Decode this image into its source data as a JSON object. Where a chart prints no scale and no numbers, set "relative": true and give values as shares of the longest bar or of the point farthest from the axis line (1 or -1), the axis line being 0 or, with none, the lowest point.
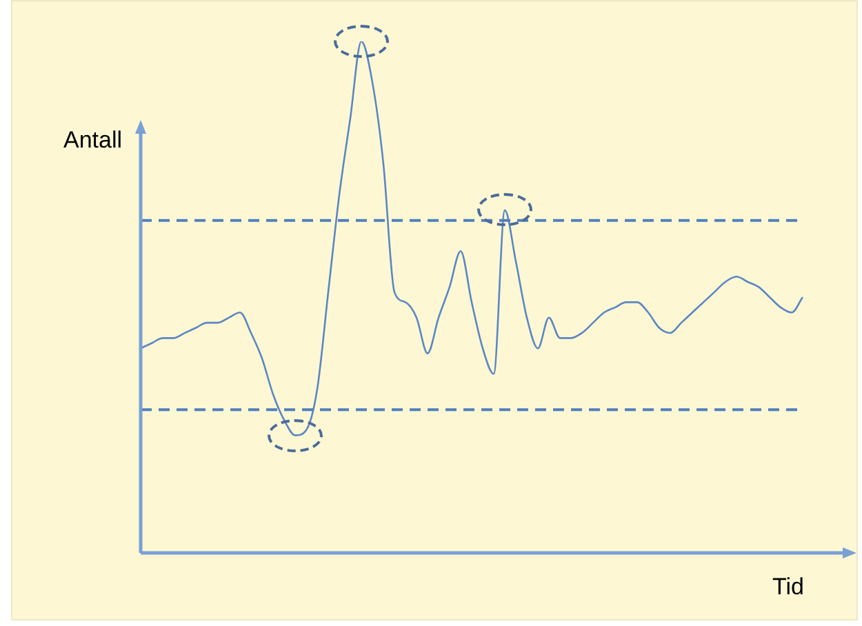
{
  "chart_data": {
    "type": "line",
    "relative": true,
    "xlabel": "Tid",
    "ylabel": "Antall",
    "categories": [
      null,
      null,
      null,
      null,
      null,
      null,
      null,
      null,
      null,
      null,
      null,
      null,
      null,
      null,
      null,
      null,
      null,
      null,
      null,
      null,
      null,
      null,
      null,
      null,
      null,
      null,
      null,
      null,
      null,
      null,
      null,
      null,
      null,
      null,
      null,
      null,
      null,
      null,
      null,
      null,
      null,
      null,
      null,
      null,
      null,
      null,
      null,
      null,
      null,
      null,
      null,
      null,
      null,
      null,
      null,
      null,
      null,
      null,
      null,
      null,
      null
    ],
    "series": [
      {
        "color": "#5b86c5",
        "values": [
          0.4,
          0.41,
          0.42,
          0.42,
          0.43,
          0.44,
          0.45,
          0.45,
          0.46,
          0.47,
          0.43,
          0.38,
          0.31,
          0.26,
          0.23,
          0.24,
          0.32,
          0.51,
          0.7,
          0.85,
          1,
          0.92,
          0.76,
          0.51,
          0.49,
          0.46,
          0.39,
          0.46,
          0.52,
          0.59,
          0.49,
          0.4,
          0.35,
          0.67,
          0.57,
          0.46,
          0.4,
          0.46,
          0.42,
          0.42,
          0.43,
          0.45,
          0.47,
          0.48,
          0.49,
          0.49,
          0.47,
          0.44,
          0.43,
          0.45,
          0.47,
          0.49,
          0.51,
          0.53,
          0.54,
          0.53,
          0.52,
          0.5,
          0.48,
          0.47,
          0.5
        ]
      }
    ],
    "ref_lines": [
      {
        "axis": "y",
        "value": 0.65,
        "color": "#4f7fbf",
        "line_style": "dashed"
      },
      {
        "axis": "y",
        "value": 0.28,
        "color": "#4f7fbf",
        "line_style": "dashed"
      }
    ],
    "marker": "none",
    "line_style": "solid",
    "legend": false
  }
}
